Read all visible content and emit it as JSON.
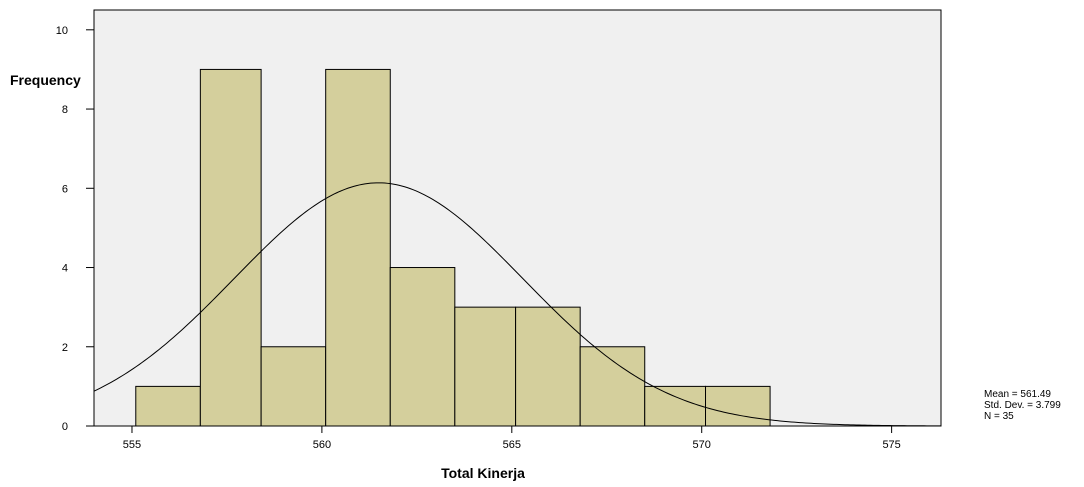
{
  "chart_data": {
    "type": "bar",
    "bin_edges": [
      555.1,
      556.8,
      558.4,
      560.1,
      561.8,
      563.5,
      565.1,
      566.8,
      568.5,
      570.1,
      571.8
    ],
    "values": [
      1,
      9,
      2,
      9,
      4,
      3,
      3,
      2,
      1,
      1
    ],
    "xlim": [
      554,
      576.3
    ],
    "ylim": [
      0,
      10.5
    ],
    "x_ticks": [
      "555",
      "560",
      "565",
      "570",
      "575"
    ],
    "y_ticks": [
      "0",
      "2",
      "4",
      "6",
      "8",
      "10"
    ],
    "title": "",
    "xlabel": "Total Kinerja",
    "ylabel": "Frequency",
    "normal_curve": {
      "mean": 561.49,
      "std_dev": 3.799,
      "n": 35
    },
    "bar_color": "#d4cf9c",
    "plot_background": "#f0f0f0",
    "legend_placement": "bottom-right"
  },
  "stats": {
    "mean": "Mean = 561.49",
    "std_dev": "Std. Dev. = 3.799",
    "n": "N = 35"
  }
}
